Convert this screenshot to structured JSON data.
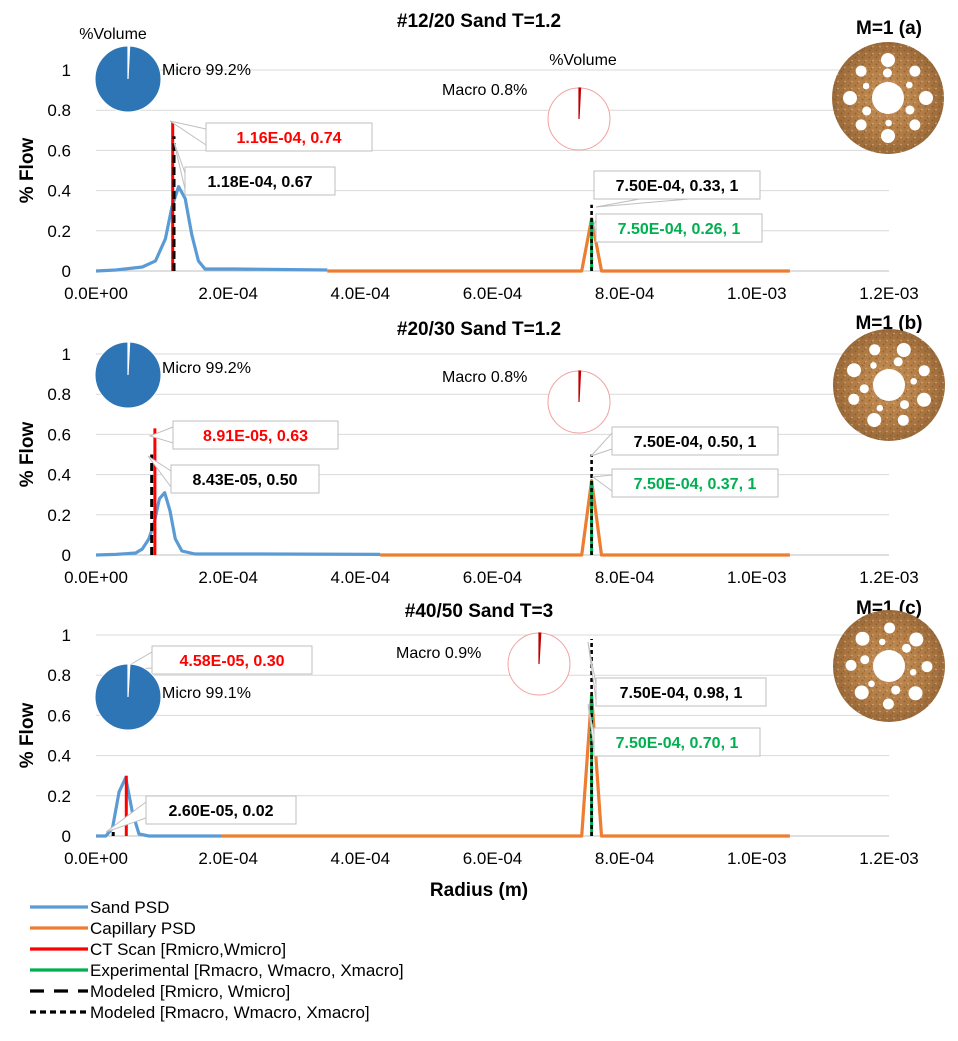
{
  "chart_data": [
    {
      "type": "line",
      "title": "#12/20 Sand T=1.2",
      "panel_label": "M=1 (a)",
      "xlabel": "",
      "ylabel": "% Flow",
      "xlim": [
        0,
        0.0012
      ],
      "ylim": [
        0,
        1
      ],
      "x_tick_labels": [
        "0.0E+00",
        "2.0E-04",
        "4.0E-04",
        "6.0E-04",
        "8.0E-04",
        "1.0E-03",
        "1.2E-03"
      ],
      "y_tick_labels": [
        "0",
        "0.2",
        "0.4",
        "0.6",
        "0.8",
        "1"
      ],
      "grid": true,
      "series": [
        {
          "name": "Sand PSD",
          "x": [
            0.0,
            3e-05,
            7e-05,
            9e-05,
            0.000105,
            0.000115,
            0.000125,
            0.000135,
            0.000145,
            0.000155,
            0.000165,
            0.00018,
            0.00021,
            0.00035
          ],
          "y": [
            0.0,
            0.005,
            0.02,
            0.05,
            0.16,
            0.32,
            0.42,
            0.36,
            0.18,
            0.05,
            0.01,
            0.01,
            0.01,
            0.005
          ]
        },
        {
          "name": "Capillary PSD",
          "x": [
            0.00035,
            0.000735,
            0.00075,
            0.000765,
            0.00105
          ],
          "y": [
            0.0,
            0.0,
            0.26,
            0.0,
            0.0
          ]
        },
        {
          "name": "CT Scan [Rmicro,Wmicro]",
          "x": [
            0.000116,
            0.000116
          ],
          "y": [
            0,
            0.74
          ]
        },
        {
          "name": "Experimental [Rmacro, Wmacro, Xmacro]",
          "x": [
            0.00075,
            0.00075
          ],
          "y": [
            0,
            0.26
          ]
        },
        {
          "name": "Modeled [Rmicro, Wmicro]",
          "x": [
            0.000118,
            0.000118
          ],
          "y": [
            0,
            0.67
          ]
        },
        {
          "name": "Modeled [Rmacro, Wmacro, Xmacro]",
          "x": [
            0.00075,
            0.00075
          ],
          "y": [
            0,
            0.33
          ]
        }
      ],
      "annotations": {
        "ct": "1.16E-04, 0.74",
        "model_micro": "1.18E-04, 0.67",
        "model_macro": "7.50E-04, 0.33, 1",
        "exp": "7.50E-04, 0.26, 1"
      },
      "pie_left": {
        "title": "%Volume",
        "label": "Micro 99.2%",
        "value": 99.2
      },
      "pie_right": {
        "title": "%Volume",
        "label": "Macro 0.8%",
        "value": 0.8
      }
    },
    {
      "type": "line",
      "title": "#20/30 Sand T=1.2",
      "panel_label": "M=1 (b)",
      "xlabel": "",
      "ylabel": "% Flow",
      "xlim": [
        0,
        0.0012
      ],
      "ylim": [
        0,
        1
      ],
      "x_tick_labels": [
        "0.0E+00",
        "2.0E-04",
        "4.0E-04",
        "6.0E-04",
        "8.0E-04",
        "1.0E-03",
        "1.2E-03"
      ],
      "y_tick_labels": [
        "0",
        "0.2",
        "0.4",
        "0.6",
        "0.8",
        "1"
      ],
      "grid": true,
      "series": [
        {
          "name": "Sand PSD",
          "x": [
            0.0,
            3e-05,
            6e-05,
            7e-05,
            8e-05,
            8.8e-05,
            9.6e-05,
            0.000104,
            0.000112,
            0.00012,
            0.00013,
            0.00015,
            0.00025,
            0.00043
          ],
          "y": [
            0.0,
            0.003,
            0.01,
            0.03,
            0.08,
            0.16,
            0.28,
            0.31,
            0.22,
            0.08,
            0.02,
            0.005,
            0.005,
            0.003
          ]
        },
        {
          "name": "Capillary PSD",
          "x": [
            0.00043,
            0.000735,
            0.00075,
            0.000765,
            0.00105
          ],
          "y": [
            0.0,
            0.0,
            0.37,
            0.0,
            0.0
          ]
        },
        {
          "name": "CT Scan [Rmicro,Wmicro]",
          "x": [
            8.91e-05,
            8.91e-05
          ],
          "y": [
            0,
            0.63
          ]
        },
        {
          "name": "Experimental [Rmacro, Wmacro, Xmacro]",
          "x": [
            0.00075,
            0.00075
          ],
          "y": [
            0,
            0.37
          ]
        },
        {
          "name": "Modeled [Rmicro, Wmicro]",
          "x": [
            8.43e-05,
            8.43e-05
          ],
          "y": [
            0,
            0.5
          ]
        },
        {
          "name": "Modeled [Rmacro, Wmacro, Xmacro]",
          "x": [
            0.00075,
            0.00075
          ],
          "y": [
            0,
            0.5
          ]
        }
      ],
      "annotations": {
        "ct": "8.91E-05, 0.63",
        "model_micro": "8.43E-05, 0.50",
        "model_macro": "7.50E-04, 0.50, 1",
        "exp": "7.50E-04, 0.37, 1"
      },
      "pie_left": {
        "title": "",
        "label": "Micro 99.2%",
        "value": 99.2
      },
      "pie_right": {
        "title": "",
        "label": "Macro 0.8%",
        "value": 0.8
      }
    },
    {
      "type": "line",
      "title": "#40/50 Sand T=3",
      "panel_label": "M=1 (c)",
      "xlabel": "Radius (m)",
      "ylabel": "% Flow",
      "xlim": [
        0,
        0.0012
      ],
      "ylim": [
        0,
        1
      ],
      "x_tick_labels": [
        "0.0E+00",
        "2.0E-04",
        "4.0E-04",
        "6.0E-04",
        "8.0E-04",
        "1.0E-03",
        "1.2E-03"
      ],
      "y_tick_labels": [
        "0",
        "0.2",
        "0.4",
        "0.6",
        "0.8",
        "1"
      ],
      "grid": true,
      "series": [
        {
          "name": "Sand PSD",
          "x": [
            0.0,
            1.5e-05,
            2.5e-05,
            3.5e-05,
            4.5e-05,
            5.5e-05,
            6.5e-05,
            8e-05,
            0.00019
          ],
          "y": [
            0.0,
            0.0,
            0.04,
            0.22,
            0.29,
            0.12,
            0.01,
            0.0,
            0.0
          ]
        },
        {
          "name": "Capillary PSD",
          "x": [
            0.00019,
            0.000735,
            0.00075,
            0.000765,
            0.00105
          ],
          "y": [
            0.0,
            0.0,
            0.7,
            0.0,
            0.0
          ]
        },
        {
          "name": "CT Scan [Rmicro,Wmicro]",
          "x": [
            4.58e-05,
            4.58e-05
          ],
          "y": [
            0,
            0.3
          ]
        },
        {
          "name": "Experimental [Rmacro, Wmacro, Xmacro]",
          "x": [
            0.00075,
            0.00075
          ],
          "y": [
            0,
            0.7
          ]
        },
        {
          "name": "Modeled [Rmicro, Wmicro]",
          "x": [
            2.6e-05,
            2.6e-05
          ],
          "y": [
            0,
            0.02
          ]
        },
        {
          "name": "Modeled [Rmacro, Wmacro, Xmacro]",
          "x": [
            0.00075,
            0.00075
          ],
          "y": [
            0,
            0.98
          ]
        }
      ],
      "annotations": {
        "ct": "4.58E-05, 0.30",
        "model_micro": "2.60E-05, 0.02",
        "model_macro": "7.50E-04, 0.98, 1",
        "exp": "7.50E-04, 0.70, 1"
      },
      "pie_left": {
        "title": "",
        "label": "Micro 99.1%",
        "value": 99.1
      },
      "pie_right": {
        "title": "",
        "label": "Macro 0.9%",
        "value": 0.9
      }
    }
  ],
  "legend": [
    {
      "label": "Sand PSD",
      "color": "#5B9BD5",
      "style": "solid"
    },
    {
      "label": "Capillary PSD",
      "color": "#ED7D31",
      "style": "solid"
    },
    {
      "label": "CT Scan [Rmicro,Wmicro]",
      "color": "#FF0000",
      "style": "solid"
    },
    {
      "label": "Experimental [Rmacro, Wmacro, Xmacro]",
      "color": "#00B050",
      "style": "solid"
    },
    {
      "label": "Modeled [Rmicro, Wmicro]",
      "color": "#000000",
      "style": "long-dash"
    },
    {
      "label": "Modeled [Rmacro, Wmacro, Xmacro]",
      "color": "#000000",
      "style": "short-dash"
    }
  ],
  "colors": {
    "sand": "#5B9BD5",
    "capillary": "#ED7D31",
    "ct": "#FF0000",
    "experimental": "#00B050",
    "modeled": "#000000",
    "pie_micro": "#2E75B6",
    "pie_macro": "#C00000",
    "grid": "#D9D9D9"
  }
}
